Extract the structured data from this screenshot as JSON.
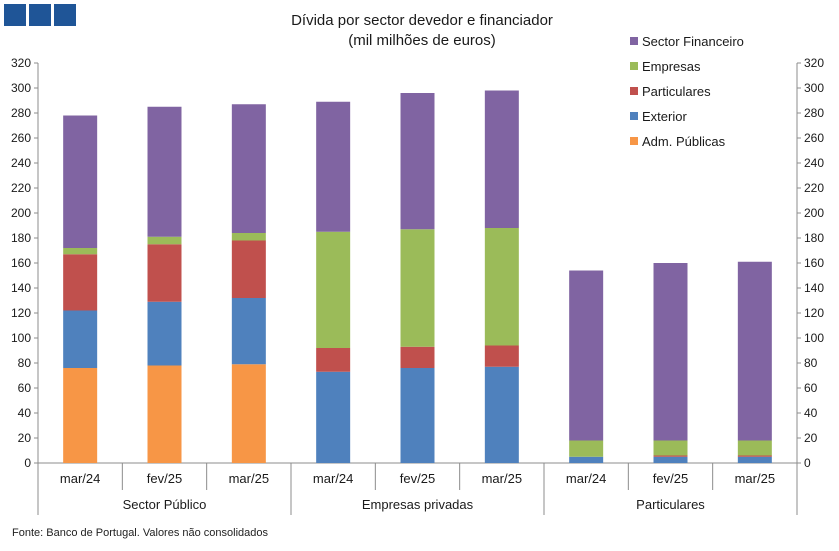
{
  "logo": {
    "blocks": [
      "#1f5597",
      "#1f5597",
      "#1f5597"
    ]
  },
  "chart_data": {
    "type": "bar",
    "stacked": true,
    "title": "Dívida por sector devedor e financiador",
    "subtitle": "(mil milhões de euros)",
    "source": "Fonte: Banco de Portugal. Valores não consolidados",
    "ylim": [
      0,
      320
    ],
    "yticks": [
      "0",
      "20",
      "40",
      "60",
      "80",
      "100",
      "120",
      "140",
      "160",
      "180",
      "200",
      "220",
      "240",
      "260",
      "280",
      "300",
      "320"
    ],
    "groups": [
      {
        "label": "Sector Público",
        "categories": [
          "mar/24",
          "fev/25",
          "mar/25"
        ]
      },
      {
        "label": "Empresas privadas",
        "categories": [
          "mar/24",
          "fev/25",
          "mar/25"
        ]
      },
      {
        "label": "Particulares",
        "categories": [
          "mar/24",
          "fev/25",
          "mar/25"
        ]
      }
    ],
    "series": [
      {
        "name": "Adm. Públicas",
        "color": "#f79646",
        "values": [
          76,
          78,
          79,
          0,
          0,
          0,
          0,
          0,
          0
        ]
      },
      {
        "name": "Exterior",
        "color": "#4f81bd",
        "values": [
          46,
          51,
          53,
          73,
          76,
          77,
          5,
          5,
          5
        ]
      },
      {
        "name": "Particulares",
        "color": "#c0504d",
        "values": [
          45,
          46,
          46,
          19,
          17,
          17,
          0,
          1,
          1
        ]
      },
      {
        "name": "Empresas",
        "color": "#9bbb59",
        "values": [
          5,
          6,
          6,
          93,
          94,
          94,
          13,
          12,
          12
        ]
      },
      {
        "name": "Sector Financeiro",
        "color": "#8064a2",
        "values": [
          106,
          104,
          103,
          104,
          109,
          110,
          136,
          142,
          143
        ]
      }
    ],
    "legend_order": [
      "Sector Financeiro",
      "Empresas",
      "Particulares",
      "Exterior",
      "Adm. Públicas"
    ]
  }
}
